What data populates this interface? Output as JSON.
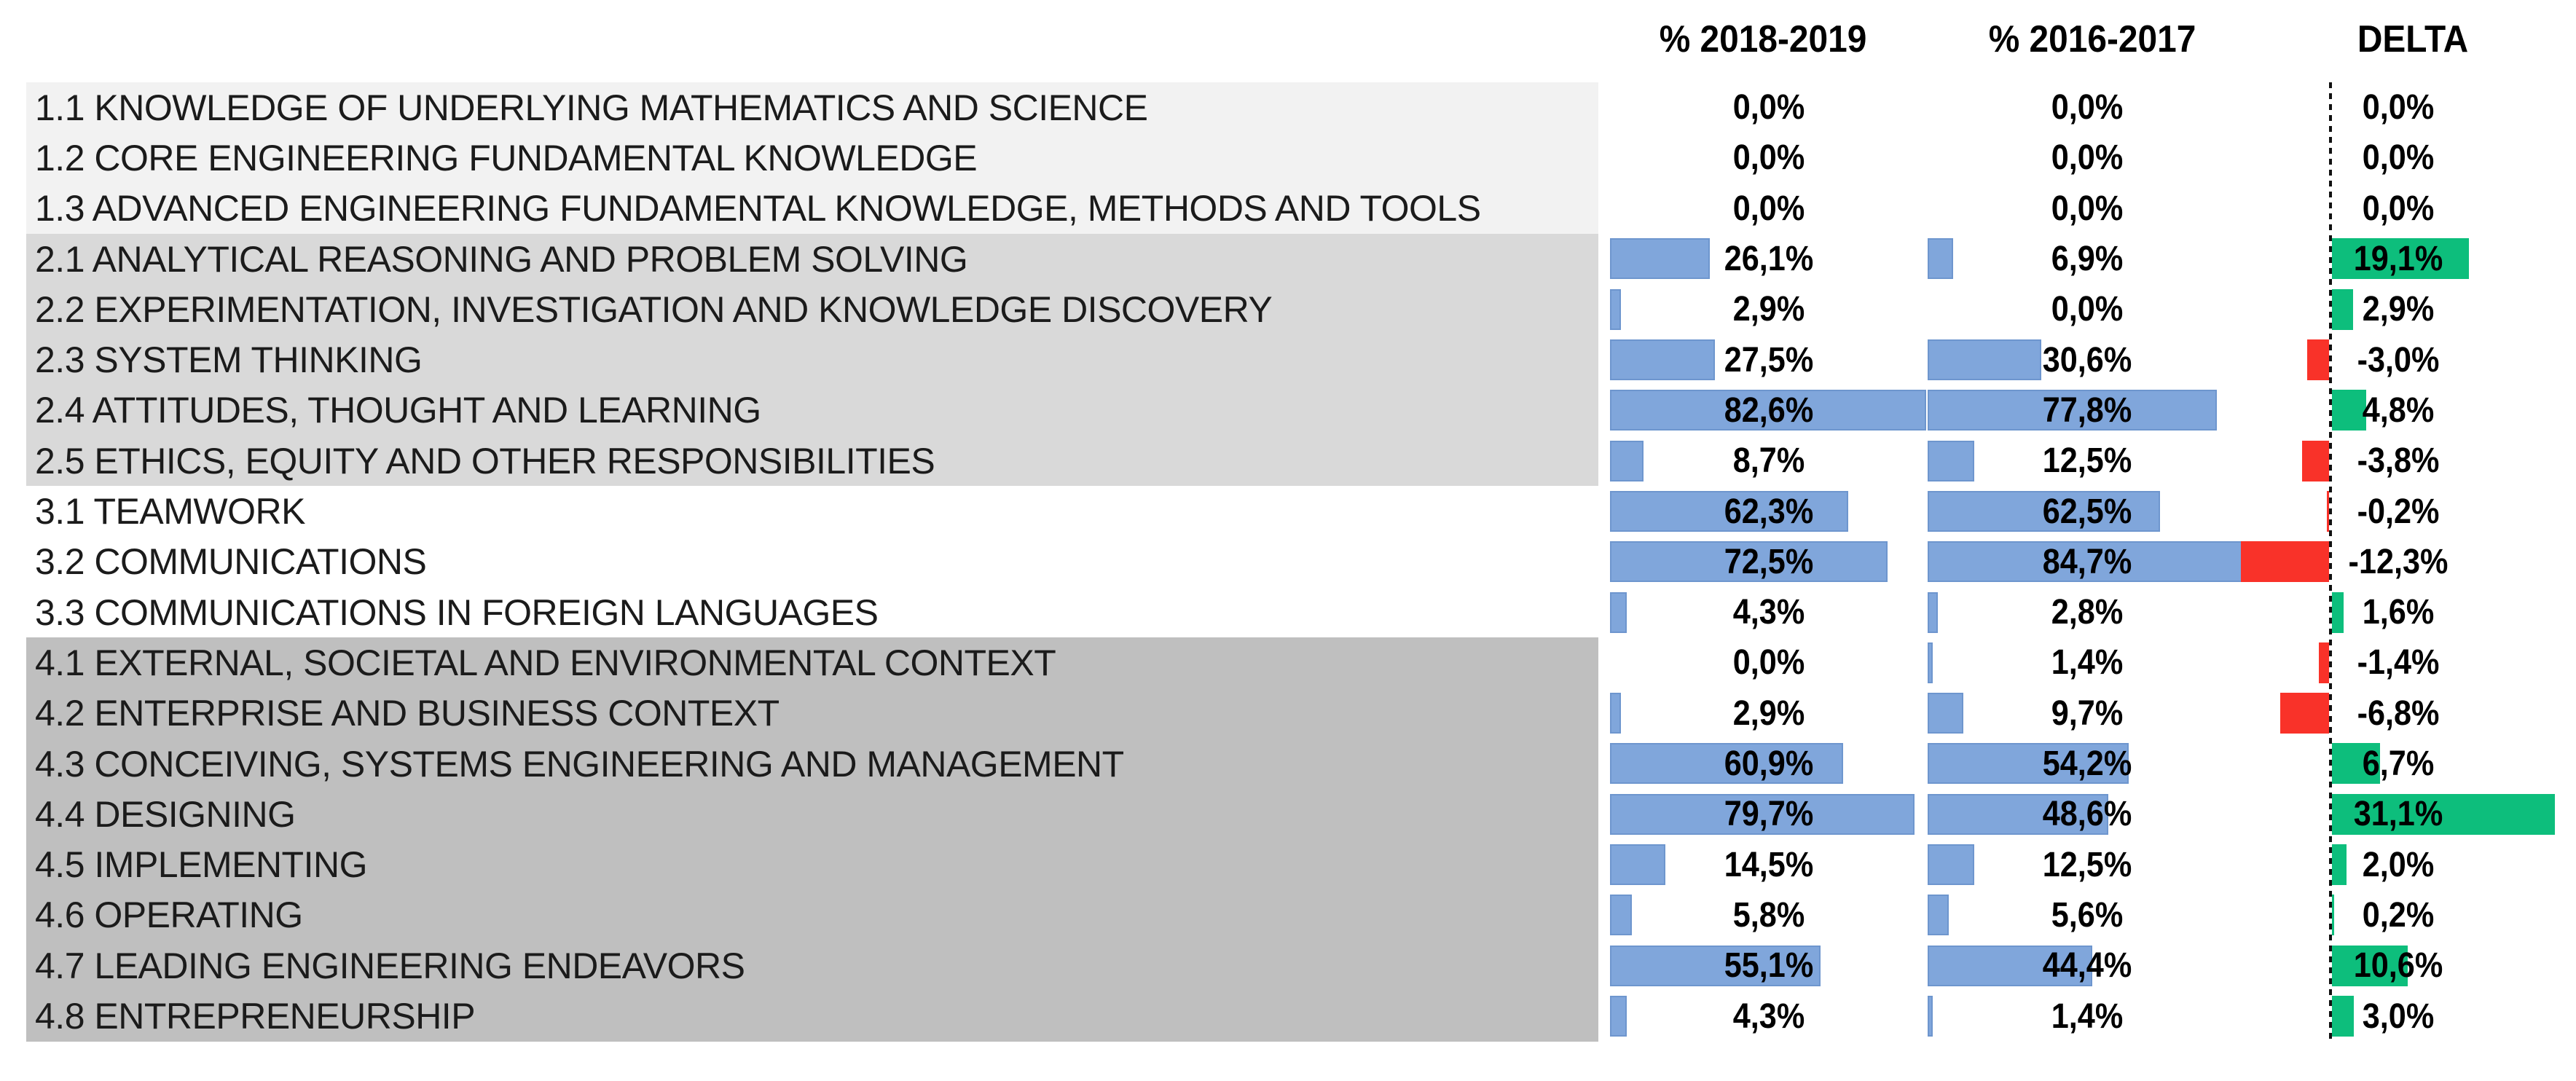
{
  "chart_data": {
    "type": "bar",
    "orientation": "horizontal",
    "title": "",
    "value_format": "percent, comma decimal separator, 1 decimal place",
    "columns": [
      {
        "label": "% 2018-2019"
      },
      {
        "label": "% 2016-2017"
      },
      {
        "label": "DELTA"
      }
    ],
    "categories": [
      "1.1 KNOWLEDGE OF UNDERLYING MATHEMATICS AND SCIENCE",
      "1.2 CORE ENGINEERING FUNDAMENTAL KNOWLEDGE",
      "1.3 ADVANCED ENGINEERING FUNDAMENTAL KNOWLEDGE, METHODS AND TOOLS",
      "2.1 ANALYTICAL REASONING AND PROBLEM SOLVING",
      "2.2 EXPERIMENTATION, INVESTIGATION AND KNOWLEDGE DISCOVERY",
      "2.3 SYSTEM THINKING",
      "2.4 ATTITUDES, THOUGHT AND LEARNING",
      "2.5 ETHICS, EQUITY AND OTHER RESPONSIBILITIES",
      "3.1 TEAMWORK",
      "3.2 COMMUNICATIONS",
      "3.3 COMMUNICATIONS IN FOREIGN LANGUAGES",
      "4.1 EXTERNAL, SOCIETAL AND ENVIRONMENTAL CONTEXT",
      "4.2 ENTERPRISE AND BUSINESS CONTEXT",
      "4.3 CONCEIVING, SYSTEMS ENGINEERING AND MANAGEMENT",
      "4.4 DESIGNING",
      "4.5 IMPLEMENTING",
      "4.6 OPERATING",
      "4.7 LEADING ENGINEERING ENDEAVORS",
      "4.8 ENTREPRENEURSHIP"
    ],
    "series": [
      {
        "name": "% 2018-2019",
        "values": [
          0.0,
          0.0,
          0.0,
          26.1,
          2.9,
          27.5,
          82.6,
          8.7,
          62.3,
          72.5,
          4.3,
          0.0,
          2.9,
          60.9,
          79.7,
          14.5,
          5.8,
          55.1,
          4.3
        ],
        "labels": [
          "0,0%",
          "0,0%",
          "0,0%",
          "26,1%",
          "2,9%",
          "27,5%",
          "82,6%",
          "8,7%",
          "62,3%",
          "72,5%",
          "4,3%",
          "0,0%",
          "2,9%",
          "60,9%",
          "79,7%",
          "14,5%",
          "5,8%",
          "55,1%",
          "4,3%"
        ]
      },
      {
        "name": "% 2016-2017",
        "values": [
          0.0,
          0.0,
          0.0,
          6.9,
          0.0,
          30.6,
          77.8,
          12.5,
          62.5,
          84.7,
          2.8,
          1.4,
          9.7,
          54.2,
          48.6,
          12.5,
          5.6,
          44.4,
          1.4
        ],
        "labels": [
          "0,0%",
          "0,0%",
          "0,0%",
          "6,9%",
          "0,0%",
          "30,6%",
          "77,8%",
          "12,5%",
          "62,5%",
          "84,7%",
          "2,8%",
          "1,4%",
          "9,7%",
          "54,2%",
          "48,6%",
          "12,5%",
          "5,6%",
          "44,4%",
          "1,4%"
        ]
      },
      {
        "name": "DELTA",
        "values": [
          0.0,
          0.0,
          0.0,
          19.1,
          2.9,
          -3.0,
          4.8,
          -3.8,
          -0.2,
          -12.3,
          1.6,
          -1.4,
          -6.8,
          6.7,
          31.1,
          2.0,
          0.2,
          10.6,
          3.0
        ],
        "labels": [
          "0,0%",
          "0,0%",
          "0,0%",
          "19,1%",
          "2,9%",
          "-3,0%",
          "4,8%",
          "-3,8%",
          "-0,2%",
          "-12,3%",
          "1,6%",
          "-1,4%",
          "-6,8%",
          "6,7%",
          "31,1%",
          "2,0%",
          "0,2%",
          "10,6%",
          "3,0%"
        ]
      }
    ],
    "row_groups": [
      {
        "name": "1.x",
        "count": 3,
        "band_color": "#F2F2F2"
      },
      {
        "name": "2.x",
        "count": 5,
        "band_color": "#D9D9D9"
      },
      {
        "name": "3.x",
        "count": 3,
        "band_color": "#FFFFFF"
      },
      {
        "name": "4.x",
        "count": 8,
        "band_color": "#BFBFBF"
      }
    ],
    "axis": {
      "pct_columns_range": [
        0,
        100
      ],
      "delta_zero_line_style": "dotted black vertical line",
      "gridlines": false,
      "legend": "none"
    },
    "colors": {
      "pct_bar_fill": "#80A6DB",
      "pct_bar_border": "#6E96CE",
      "delta_positive": "#0DBE7C",
      "delta_negative": "#F93229",
      "text": "#000000",
      "label_text": "#1B1B1B"
    }
  }
}
